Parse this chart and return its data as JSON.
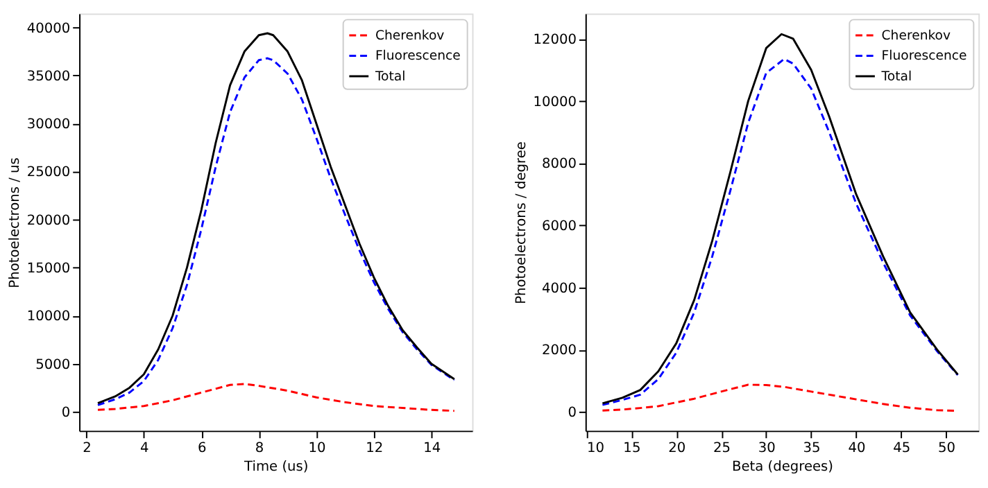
{
  "chart_data": [
    {
      "type": "line",
      "xlabel": "Time (us)",
      "ylabel": "Photoelectrons / us",
      "xlim": [
        1.75,
        15.42
      ],
      "xticks": [
        2,
        4,
        6,
        8,
        10,
        12,
        14
      ],
      "ylim": [
        -1970,
        41455
      ],
      "yticks": [
        0,
        5000,
        10000,
        15000,
        20000,
        25000,
        30000,
        35000,
        40000
      ],
      "grid": false,
      "legend": "top right",
      "series": [
        {
          "name": "Cherenkov",
          "color": "#ff0000",
          "line_style": "dashed",
          "x": [
            2.4,
            3,
            4,
            5,
            6,
            7,
            7.5,
            8,
            9,
            10,
            11,
            12,
            13,
            14,
            14.8
          ],
          "values": [
            200,
            300,
            600,
            1200,
            2000,
            2800,
            2900,
            2700,
            2200,
            1500,
            1000,
            600,
            400,
            200,
            100
          ]
        },
        {
          "name": "Fluorescence",
          "color": "#0000ff",
          "line_style": "dashed",
          "x": [
            2.4,
            3,
            3.5,
            4,
            4.5,
            5,
            5.5,
            6,
            6.5,
            7,
            7.5,
            8,
            8.3,
            8.5,
            9,
            9.5,
            10,
            10.5,
            11,
            11.5,
            12,
            12.5,
            13,
            13.5,
            14,
            14.8
          ],
          "values": [
            700,
            1300,
            2000,
            3200,
            5400,
            8700,
            13200,
            19000,
            25500,
            31200,
            34800,
            36600,
            36800,
            36600,
            35200,
            32500,
            28500,
            24300,
            20500,
            16800,
            13500,
            10700,
            8300,
            6500,
            4900,
            3300
          ]
        },
        {
          "name": "Total",
          "color": "#000000",
          "line_style": "solid",
          "x": [
            2.4,
            3,
            3.5,
            4,
            4.5,
            5,
            5.5,
            6,
            6.5,
            7,
            7.5,
            8,
            8.3,
            8.5,
            9,
            9.5,
            10,
            10.5,
            11,
            11.5,
            12,
            12.5,
            13,
            13.5,
            14,
            14.8
          ],
          "values": [
            900,
            1600,
            2500,
            3900,
            6500,
            10000,
            15000,
            21000,
            28000,
            34000,
            37500,
            39200,
            39400,
            39200,
            37500,
            34500,
            30000,
            25500,
            21500,
            17500,
            14000,
            11000,
            8500,
            6700,
            5000,
            3400
          ]
        }
      ]
    },
    {
      "type": "line",
      "xlabel": "Beta (degrees)",
      "ylabel": "Photoelectrons / degree",
      "xlim": [
        9.9,
        53.6
      ],
      "xticks": [
        10,
        15,
        20,
        25,
        30,
        35,
        40,
        45,
        50
      ],
      "ylim": [
        -610,
        12813
      ],
      "yticks": [
        0,
        2000,
        4000,
        6000,
        8000,
        10000,
        12000
      ],
      "grid": false,
      "legend": "top right",
      "series": [
        {
          "name": "Cherenkov",
          "color": "#ff0000",
          "line_style": "dashed",
          "x": [
            11.8,
            14,
            16,
            18,
            20,
            22,
            25,
            28,
            30,
            32,
            35,
            38,
            40,
            43,
            46,
            49,
            51.3
          ],
          "values": [
            40,
            70,
            120,
            180,
            300,
            420,
            650,
            870,
            860,
            800,
            650,
            500,
            400,
            250,
            130,
            50,
            30
          ]
        },
        {
          "name": "Fluorescence",
          "color": "#0000ff",
          "line_style": "dashed",
          "x": [
            11.8,
            14,
            16,
            18,
            20,
            22,
            24,
            26,
            28,
            30,
            32,
            33,
            35,
            37,
            40,
            43,
            46,
            49,
            51.3
          ],
          "values": [
            220,
            380,
            550,
            1050,
            1900,
            3200,
            5000,
            7100,
            9300,
            10900,
            11350,
            11200,
            10400,
            9000,
            6700,
            4800,
            3100,
            1950,
            1180
          ]
        },
        {
          "name": "Total",
          "color": "#000000",
          "line_style": "solid",
          "x": [
            11.8,
            14,
            16,
            18,
            20,
            22,
            24,
            26,
            28,
            30,
            31.7,
            33,
            35,
            37,
            40,
            43,
            46,
            49,
            51.3
          ],
          "values": [
            270,
            450,
            700,
            1300,
            2200,
            3600,
            5500,
            7700,
            10000,
            11700,
            12150,
            12000,
            11000,
            9500,
            7000,
            5000,
            3200,
            2000,
            1200
          ]
        }
      ]
    }
  ]
}
